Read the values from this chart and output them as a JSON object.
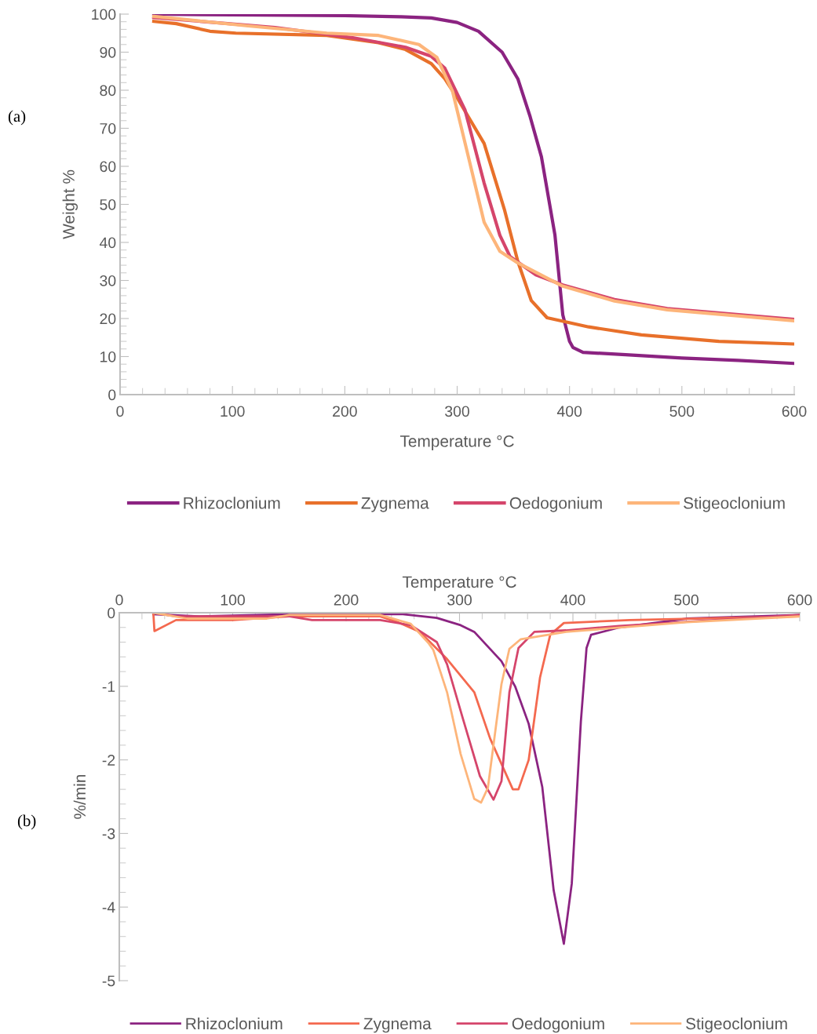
{
  "chart_data": [
    {
      "type": "line",
      "xlabel": "Temperature °C",
      "ylabel": "Weight %",
      "annotations": [
        "(a)"
      ],
      "xlim": [
        0,
        600
      ],
      "ylim": [
        0,
        100
      ],
      "xticks": [
        0,
        100,
        200,
        300,
        400,
        500,
        600
      ],
      "yticks": [
        0,
        10,
        20,
        30,
        40,
        50,
        60,
        70,
        80,
        90,
        100
      ],
      "legend": "bottom",
      "series": [
        {
          "name": "Rhizoclonium",
          "color": "#8b2381",
          "x": [
            30,
            100,
            200,
            250,
            277,
            300,
            319,
            340,
            354,
            365,
            375,
            387,
            394,
            400,
            403,
            412,
            450,
            500,
            550,
            600
          ],
          "values": [
            100,
            99.8,
            99.6,
            99.3,
            99,
            97.8,
            95.5,
            90,
            83,
            73,
            62.5,
            42,
            21,
            14,
            12.4,
            11.1,
            10.5,
            9.6,
            9,
            8.2
          ]
        },
        {
          "name": "Zygnema",
          "color": "#e8702a",
          "x": [
            30,
            50,
            80,
            103,
            184,
            230,
            254,
            277,
            289,
            300,
            324,
            342,
            354,
            366,
            380,
            417,
            464,
            533,
            600
          ],
          "values": [
            98.1,
            97.5,
            95.5,
            95,
            94.4,
            92.5,
            90.7,
            87,
            83,
            78,
            66,
            48.7,
            35,
            24.7,
            20.2,
            17.8,
            15.7,
            14,
            13.3
          ]
        },
        {
          "name": "Oedogonium",
          "color": "#d5456b",
          "x": [
            30,
            138,
            207,
            254,
            277,
            289,
            307,
            324,
            338,
            347,
            370,
            394,
            440,
            487,
            600
          ],
          "values": [
            99.1,
            96.5,
            93.8,
            91.3,
            88.9,
            85.8,
            74.8,
            55.6,
            41.9,
            36.3,
            31.5,
            28.8,
            25,
            22.6,
            19.8
          ]
        },
        {
          "name": "Stigeoclonium",
          "color": "#fdb57a",
          "x": [
            30,
            114,
            184,
            230,
            266,
            282,
            296,
            310,
            324,
            338,
            354,
            394,
            440,
            487,
            600
          ],
          "values": [
            99.4,
            96.9,
            95,
            94.4,
            92,
            88.6,
            79.6,
            62.5,
            45.3,
            37.7,
            34.6,
            28.5,
            24.6,
            22.3,
            19.4
          ]
        }
      ]
    },
    {
      "type": "line",
      "xlabel": "Temperature °C",
      "ylabel": "%/min",
      "annotations": [
        "(b)"
      ],
      "xlim": [
        0,
        600
      ],
      "ylim": [
        -5,
        0
      ],
      "xticks": [
        0,
        100,
        200,
        300,
        400,
        500,
        600
      ],
      "yticks": [
        -5,
        -4,
        -3,
        -2,
        -1,
        0
      ],
      "legend": "bottom",
      "series": [
        {
          "name": "Rhizoclonium",
          "color": "#8b2381",
          "x": [
            30,
            70,
            150,
            250,
            280,
            301,
            313,
            337,
            349,
            361,
            373,
            383,
            392,
            399,
            407,
            412,
            416,
            441,
            500,
            600
          ],
          "values": [
            -0.02,
            -0.05,
            -0.02,
            -0.02,
            -0.07,
            -0.17,
            -0.26,
            -0.66,
            -1.0,
            -1.51,
            -2.37,
            -3.77,
            -4.5,
            -3.68,
            -1.48,
            -0.48,
            -0.3,
            -0.2,
            -0.08,
            -0.03
          ]
        },
        {
          "name": "Zygnema",
          "color": "#f4694f",
          "x": [
            30,
            31,
            50,
            100,
            150,
            230,
            246,
            265,
            289,
            313,
            327,
            347,
            352,
            361,
            371,
            380,
            392,
            450,
            600
          ],
          "values": [
            0,
            -0.25,
            -0.1,
            -0.1,
            -0.05,
            -0.05,
            -0.13,
            -0.26,
            -0.63,
            -1.08,
            -1.71,
            -2.4,
            -2.4,
            -2.0,
            -0.88,
            -0.3,
            -0.14,
            -0.1,
            -0.05
          ]
        },
        {
          "name": "Oedogonium",
          "color": "#d5456b",
          "x": [
            30,
            50,
            150,
            170,
            230,
            257,
            280,
            289,
            303,
            318,
            330,
            337,
            344,
            352,
            366,
            394,
            441,
            600
          ],
          "values": [
            0,
            -0.05,
            -0.05,
            -0.1,
            -0.1,
            -0.17,
            -0.4,
            -0.7,
            -1.44,
            -2.22,
            -2.54,
            -2.29,
            -1.08,
            -0.48,
            -0.26,
            -0.24,
            -0.18,
            -0.03
          ]
        },
        {
          "name": "Stigeoclonium",
          "color": "#fdb57a",
          "x": [
            30,
            60,
            130,
            150,
            230,
            257,
            273,
            277,
            289,
            301,
            313,
            319,
            325,
            337,
            344,
            354,
            394,
            500,
            600
          ],
          "values": [
            0,
            -0.08,
            -0.08,
            -0.03,
            -0.03,
            -0.15,
            -0.42,
            -0.51,
            -1.08,
            -1.92,
            -2.53,
            -2.58,
            -2.38,
            -0.97,
            -0.49,
            -0.36,
            -0.26,
            -0.13,
            -0.05
          ]
        }
      ]
    }
  ]
}
